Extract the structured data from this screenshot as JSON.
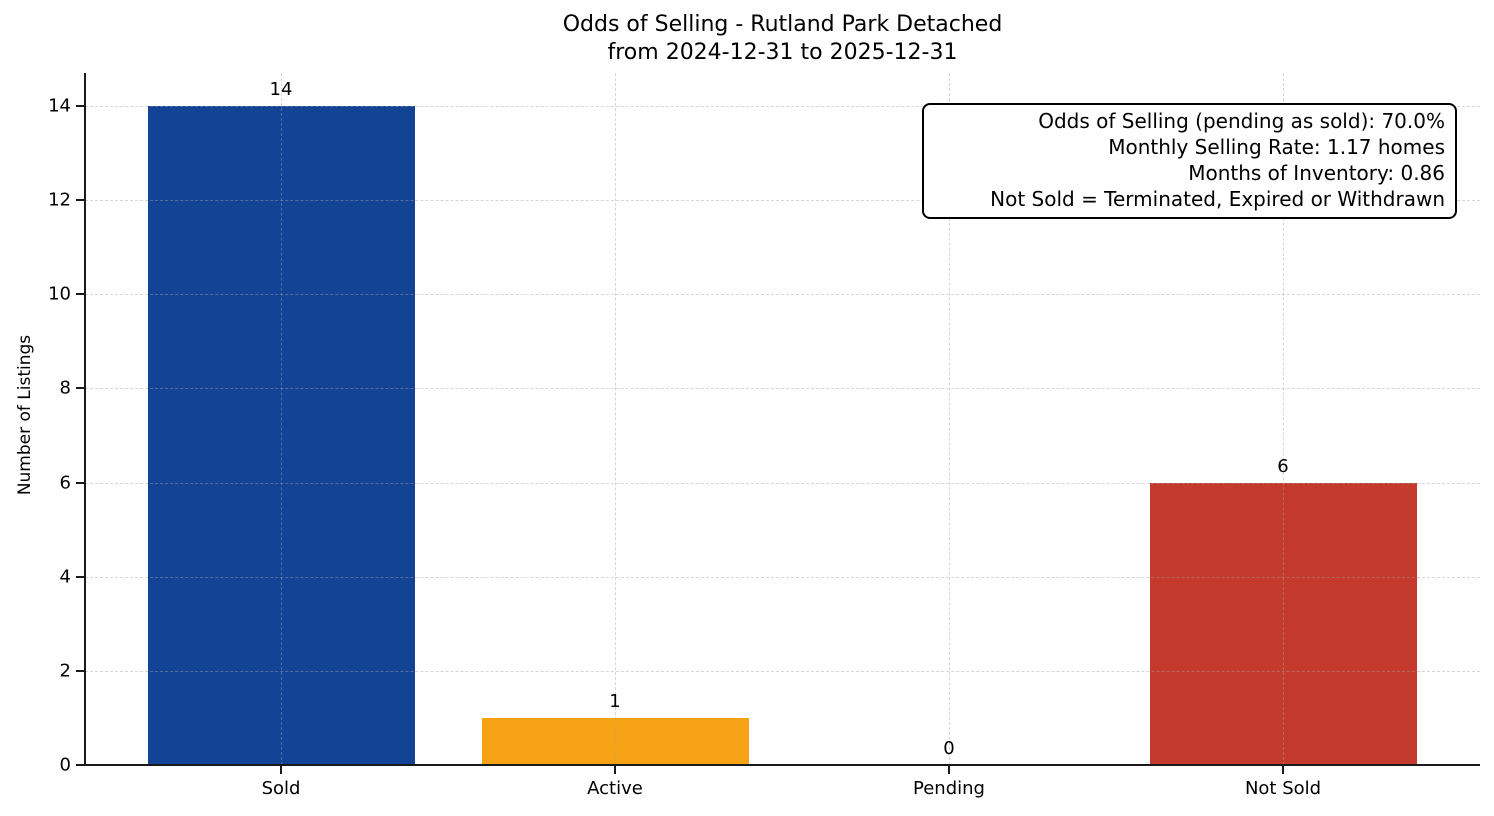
{
  "chart_data": {
    "type": "bar",
    "title": "Odds of Selling - Rutland Park Detached",
    "subtitle": "from 2024-12-31 to 2025-12-31",
    "ylabel": "Number of Listings",
    "xlabel": "",
    "categories": [
      "Sold",
      "Active",
      "Pending",
      "Not Sold"
    ],
    "values": [
      14,
      1,
      0,
      6
    ],
    "value_labels": [
      "14",
      "1",
      "0",
      "6"
    ],
    "bar_colors": [
      "#124394",
      "#F5A315",
      null,
      "#C43A2C"
    ],
    "ylim": [
      0,
      14.7
    ],
    "yticks": [
      0,
      2,
      4,
      6,
      8,
      10,
      12,
      14
    ],
    "grid": true,
    "grid_style": "dashed",
    "legend_position": "none",
    "axis_color": "#1a1a1a",
    "annotation_box": {
      "lines": [
        "Odds of Selling (pending as sold): 70.0%",
        "Monthly Selling Rate: 1.17 homes",
        "Months of Inventory: 0.86",
        "Not Sold = Terminated, Expired or Withdrawn"
      ]
    }
  }
}
